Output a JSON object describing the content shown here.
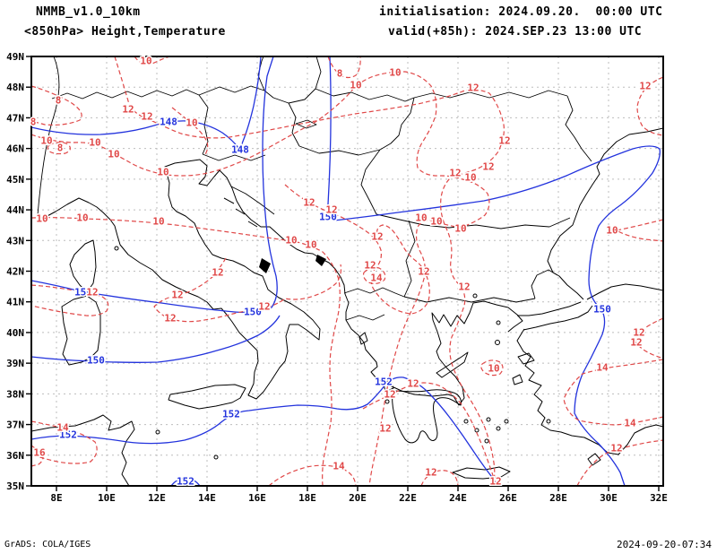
{
  "header": {
    "model": "NMMB_v1.0_10km",
    "field": "<850hPa> Height,Temperature",
    "init": "initialisation: 2024.09.20.  00:00 UTC",
    "valid": "valid(+85h): 2024.SEP.23 13:00 UTC"
  },
  "footer": {
    "left": "GrADS: COLA/IGES",
    "right": "2024-09-20-07:34"
  },
  "colors": {
    "height_contour": "#2333dd",
    "temp_contour": "#e04848",
    "grid": "#bdbdbd",
    "coast": "#000000"
  },
  "chart_data": {
    "type": "contour-map",
    "title": "NMMB_v1.0_10km <850hPa> Height,Temperature",
    "projection": "lat-lon",
    "x": {
      "label": "longitude",
      "range_deg": [
        7,
        32.2
      ],
      "ticks": [
        "8E",
        "10E",
        "12E",
        "14E",
        "16E",
        "18E",
        "20E",
        "22E",
        "24E",
        "26E",
        "28E",
        "30E",
        "32E"
      ]
    },
    "y": {
      "label": "latitude",
      "range_deg": [
        35,
        49
      ],
      "ticks": [
        "49N",
        "48N",
        "47N",
        "46N",
        "45N",
        "44N",
        "43N",
        "42N",
        "41N",
        "40N",
        "39N",
        "38N",
        "37N",
        "36N",
        "35N"
      ]
    },
    "grid": "dotted, 1 deg lat / 2 deg lon",
    "series": [
      {
        "name": "850hPa geopotential height (dam)",
        "style": "solid blue",
        "levels": [
          148,
          150,
          152
        ],
        "labels": [
          [
            "148",
            188,
            136
          ],
          [
            "148",
            268,
            167
          ],
          [
            "150",
            366,
            242
          ],
          [
            "150",
            93,
            326
          ],
          [
            "150",
            282,
            348
          ],
          [
            "150",
            107,
            402
          ],
          [
            "150",
            672,
            345
          ],
          [
            "152",
            76,
            485
          ],
          [
            "152",
            258,
            462
          ],
          [
            "152",
            428,
            426
          ],
          [
            "152",
            207,
            537
          ]
        ]
      },
      {
        "name": "850hPa temperature (C)",
        "style": "dashed red",
        "levels": [
          8,
          10,
          12,
          14,
          16
        ],
        "labels": [
          [
            "10",
            163,
            68
          ],
          [
            "8",
            65,
            112
          ],
          [
            "8",
            37,
            136
          ],
          [
            "12",
            143,
            122
          ],
          [
            "12",
            164,
            130
          ],
          [
            "10",
            214,
            137
          ],
          [
            "10",
            52,
            157
          ],
          [
            "10",
            106,
            159
          ],
          [
            "8",
            67,
            165
          ],
          [
            "10",
            127,
            172
          ],
          [
            "10",
            182,
            192
          ],
          [
            "8",
            379,
            82
          ],
          [
            "10",
            397,
            95
          ],
          [
            "10",
            441,
            81
          ],
          [
            "12",
            528,
            98
          ],
          [
            "12",
            720,
            96
          ],
          [
            "12",
            563,
            157
          ],
          [
            "12",
            545,
            186
          ],
          [
            "12",
            508,
            193
          ],
          [
            "10",
            525,
            198
          ],
          [
            "12",
            345,
            226
          ],
          [
            "12",
            370,
            234
          ],
          [
            "10",
            47,
            244
          ],
          [
            "10",
            92,
            243
          ],
          [
            "10",
            177,
            247
          ],
          [
            "10",
            325,
            268
          ],
          [
            "10",
            347,
            273
          ],
          [
            "10",
            470,
            243
          ],
          [
            "10",
            487,
            247
          ],
          [
            "10",
            514,
            255
          ],
          [
            "12",
            421,
            264
          ],
          [
            "12",
            413,
            296
          ],
          [
            "14",
            420,
            310
          ],
          [
            "12",
            473,
            303
          ],
          [
            "12",
            518,
            320
          ],
          [
            "12",
            243,
            304
          ],
          [
            "12",
            103,
            326
          ],
          [
            "12",
            198,
            329
          ],
          [
            "12",
            190,
            355
          ],
          [
            "12",
            295,
            342
          ],
          [
            "10",
            683,
            257
          ],
          [
            "12",
            713,
            371
          ],
          [
            "12",
            710,
            382
          ],
          [
            "14",
            672,
            410
          ],
          [
            "14",
            703,
            472
          ],
          [
            "12",
            688,
            500
          ],
          [
            "10",
            551,
            411
          ],
          [
            "14",
            70,
            477
          ],
          [
            "16",
            44,
            505
          ],
          [
            "12",
            435,
            440
          ],
          [
            "12",
            461,
            428
          ],
          [
            "12",
            430,
            478
          ],
          [
            "14",
            378,
            520
          ],
          [
            "12",
            481,
            527
          ],
          [
            "12",
            553,
            537
          ]
        ]
      }
    ]
  }
}
